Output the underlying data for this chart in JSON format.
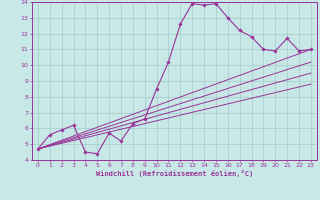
{
  "background_color": "#c8e8e8",
  "grid_color": "#a8d0d0",
  "line_color": "#993399",
  "marker_color": "#993399",
  "xlabel": "Windchill (Refroidissement éolien,°C)",
  "xlim": [
    -0.5,
    23.5
  ],
  "ylim": [
    4,
    14
  ],
  "xticks": [
    0,
    1,
    2,
    3,
    4,
    5,
    6,
    7,
    8,
    9,
    10,
    11,
    12,
    13,
    14,
    15,
    16,
    17,
    18,
    19,
    20,
    21,
    22,
    23
  ],
  "yticks": [
    4,
    5,
    6,
    7,
    8,
    9,
    10,
    11,
    12,
    13,
    14
  ],
  "main_series": {
    "x": [
      0,
      1,
      2,
      3,
      4,
      5,
      6,
      7,
      8,
      9,
      10,
      11,
      12,
      13,
      14,
      15,
      16,
      17,
      18,
      19,
      20,
      21,
      22,
      23
    ],
    "y": [
      4.7,
      5.6,
      5.9,
      6.2,
      4.5,
      4.4,
      5.7,
      5.2,
      6.3,
      6.6,
      8.5,
      10.2,
      12.6,
      13.9,
      13.8,
      13.9,
      13.0,
      12.2,
      11.8,
      11.0,
      10.9,
      11.7,
      10.9,
      11.0
    ]
  },
  "straight_lines": [
    {
      "x": [
        0,
        23
      ],
      "y": [
        4.7,
        11.0
      ]
    },
    {
      "x": [
        0,
        23
      ],
      "y": [
        4.7,
        10.2
      ]
    },
    {
      "x": [
        0,
        23
      ],
      "y": [
        4.7,
        9.5
      ]
    },
    {
      "x": [
        0,
        23
      ],
      "y": [
        4.7,
        8.8
      ]
    }
  ]
}
